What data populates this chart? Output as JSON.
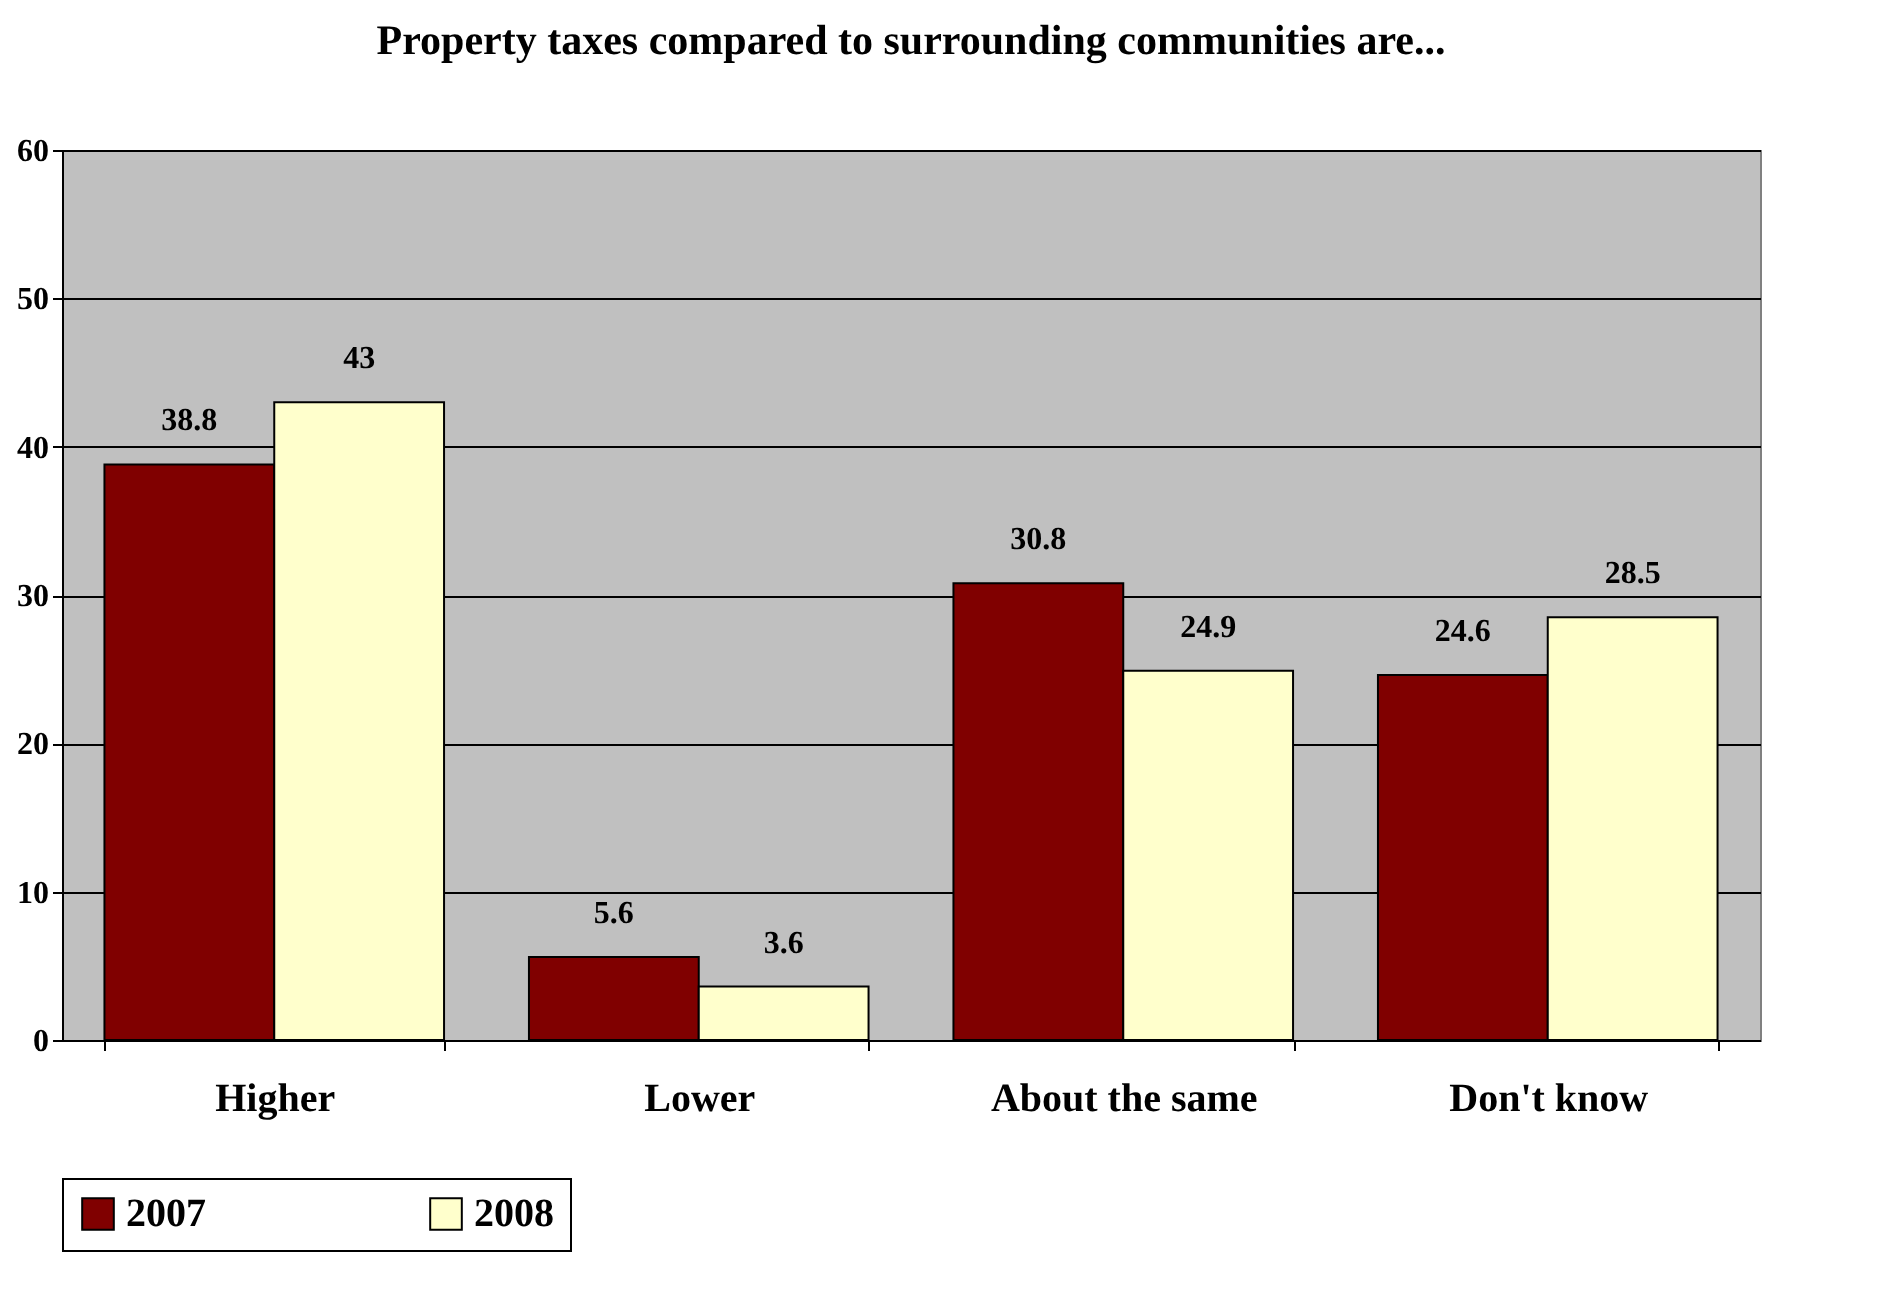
{
  "chart_data": {
    "type": "bar",
    "title": "Property taxes compared to surrounding communities are...",
    "categories": [
      "Higher",
      "Lower",
      "About the same",
      "Don't know"
    ],
    "series": [
      {
        "name": "2007",
        "color": "#800000",
        "values": [
          38.8,
          5.6,
          30.8,
          24.6
        ]
      },
      {
        "name": "2008",
        "color": "#ffffcc",
        "values": [
          43,
          3.6,
          24.9,
          28.5
        ]
      }
    ],
    "ylim": [
      0,
      60
    ],
    "yticks": [
      0,
      10,
      20,
      30,
      40,
      50,
      60
    ],
    "grid": "y",
    "legend": "bottom",
    "data_labels": true
  }
}
